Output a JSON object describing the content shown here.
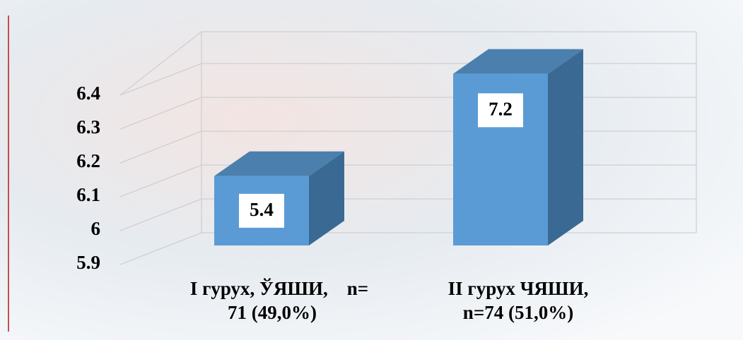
{
  "chart_data": {
    "type": "bar",
    "categories": [
      "I гурух, ЎЯШИ,    n=\n71 (49,0%)",
      "II гурух ЧЯШИ,\nn=74 (51,0%)"
    ],
    "series": [
      {
        "values": [
          5.4,
          7.2
        ],
        "color": "#5b9bd5",
        "axis": "y2"
      }
    ],
    "ylim": [
      5.9,
      6.4
    ],
    "yticks": [
      5.9,
      6,
      6.1,
      6.2,
      6.3,
      6.4
    ],
    "y2lim": [
      4.18,
      7.94
    ],
    "grid": true
  }
}
